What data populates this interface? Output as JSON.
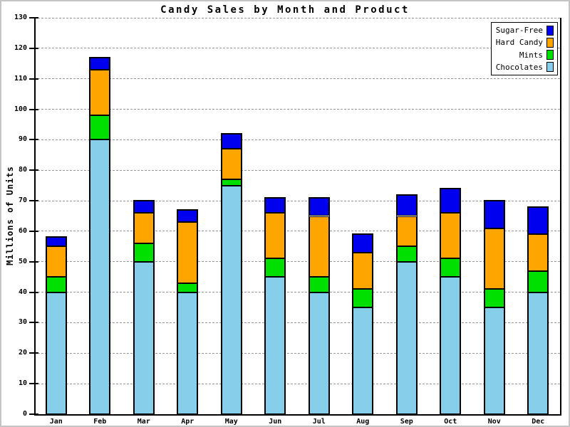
{
  "chart_data": {
    "type": "bar",
    "stacked": true,
    "title": "Candy Sales by Month and Product",
    "ylabel": "Millions of Units",
    "xlabel": "",
    "ylim": [
      0,
      130
    ],
    "ytick_interval": 10,
    "grid": true,
    "legend_position": "top-right",
    "categories": [
      "Jan",
      "Feb",
      "Mar",
      "Apr",
      "May",
      "Jun",
      "Jul",
      "Aug",
      "Sep",
      "Oct",
      "Nov",
      "Dec"
    ],
    "series": [
      {
        "name": "Chocolates",
        "color": "#87CEEB",
        "values": [
          40,
          90,
          50,
          40,
          75,
          45,
          40,
          35,
          50,
          45,
          35,
          40
        ]
      },
      {
        "name": "Mints",
        "color": "#00E000",
        "values": [
          5,
          8,
          6,
          3,
          2,
          6,
          5,
          6,
          5,
          6,
          6,
          7
        ]
      },
      {
        "name": "Hard Candy",
        "color": "#FFA500",
        "values": [
          10,
          15,
          10,
          20,
          10,
          15,
          20,
          12,
          10,
          15,
          20,
          12
        ]
      },
      {
        "name": "Sugar-Free",
        "color": "#0000EE",
        "values": [
          3,
          4,
          4,
          4,
          5,
          5,
          6,
          6,
          7,
          8,
          9,
          9
        ]
      }
    ],
    "stack_totals": [
      58,
      117,
      70,
      67,
      92,
      71,
      71,
      59,
      72,
      74,
      70,
      68
    ],
    "legend": {
      "items": [
        {
          "label": "Sugar-Free"
        },
        {
          "label": "Hard Candy"
        },
        {
          "label": "Mints"
        },
        {
          "label": "Chocolates"
        }
      ]
    }
  },
  "colors": {
    "background": "#FFFFFF",
    "axis": "#000000",
    "gridline": "#999999",
    "outer_border": "#C4C4C4"
  }
}
